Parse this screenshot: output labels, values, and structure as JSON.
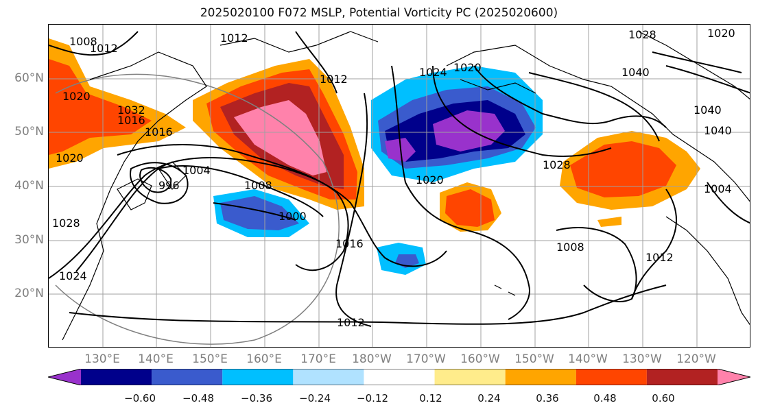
{
  "title": "2025020100 F072 MSLP, Potential Vorticity PC (2025020600)",
  "lat_labels": [
    "60°N",
    "50°N",
    "40°N",
    "30°N",
    "20°N"
  ],
  "lon_labels": [
    "130°E",
    "140°E",
    "150°E",
    "160°E",
    "170°E",
    "180°W",
    "170°W",
    "160°W",
    "150°W",
    "140°W",
    "130°W",
    "120°W"
  ],
  "colorbar": {
    "colors": [
      "#9932cc",
      "#00008b",
      "#3a5bcd",
      "#00bfff",
      "#b0e2ff",
      "#ffffff",
      "#ffec8b",
      "#ffa500",
      "#ff4500",
      "#b22222",
      "#ff82ab"
    ],
    "tick_labels": [
      "−0.60",
      "−0.48",
      "−0.36",
      "−0.24",
      "−0.12",
      "0.12",
      "0.24",
      "0.36",
      "0.48",
      "0.60"
    ]
  },
  "isobar_labels": [
    "1012",
    "1008",
    "1020",
    "1012",
    "1016",
    "1024",
    "1016",
    "1020",
    "1004",
    "996",
    "1008",
    "1000",
    "1016",
    "1020",
    "1024",
    "1028",
    "1012",
    "1008",
    "1032",
    "1012",
    "1028",
    "1040",
    "1040",
    "1040",
    "1004",
    "1028",
    "1020",
    "1012",
    "1020"
  ]
}
